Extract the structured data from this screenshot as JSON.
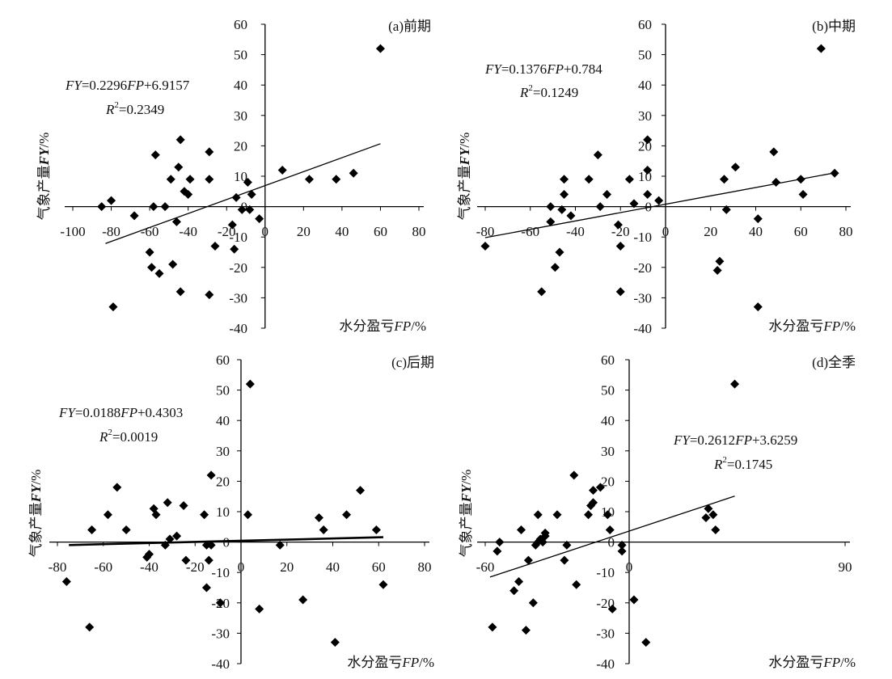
{
  "chart_data": [
    {
      "type": "scatter",
      "title": "(a)前期",
      "xlabel": "水分盈亏FP/%",
      "ylabel": "气象产量FY/%",
      "xlim": [
        -100,
        80
      ],
      "ylim": [
        -40,
        60
      ],
      "xticks": [
        "-100",
        "-80",
        "-60",
        "-40",
        "-20",
        "0",
        "20",
        "40",
        "60",
        "80"
      ],
      "yticks": [
        "-40",
        "-30",
        "-20",
        "-10",
        "0",
        "10",
        "20",
        "30",
        "40",
        "50",
        "60"
      ],
      "equation": {
        "lhs": "FY",
        "mid": "=0.2296",
        "var": "FP",
        "rhs": "+6.9157"
      },
      "r2": {
        "base": "R",
        "exp": "2",
        "value": "=0.2349"
      },
      "trendline": {
        "slope": 0.2296,
        "intercept": 6.9157,
        "x_range": [
          -83,
          60
        ]
      },
      "points": [
        [
          -85,
          0
        ],
        [
          -80,
          2
        ],
        [
          -79,
          -33
        ],
        [
          -68,
          -3
        ],
        [
          -60,
          -15
        ],
        [
          -59,
          -20
        ],
        [
          -58,
          0
        ],
        [
          -57,
          17
        ],
        [
          -55,
          -22
        ],
        [
          -52,
          0
        ],
        [
          -49,
          9
        ],
        [
          -48,
          -19
        ],
        [
          -46,
          -5
        ],
        [
          -45,
          13
        ],
        [
          -44,
          22
        ],
        [
          -44,
          -28
        ],
        [
          -42,
          5
        ],
        [
          -40,
          4
        ],
        [
          -39,
          9
        ],
        [
          -29,
          18
        ],
        [
          -29,
          9
        ],
        [
          -29,
          -29
        ],
        [
          -26,
          -13
        ],
        [
          -17,
          -6
        ],
        [
          -16,
          -14
        ],
        [
          -15,
          3
        ],
        [
          -12,
          -1
        ],
        [
          -9,
          8
        ],
        [
          -8,
          -1
        ],
        [
          -7,
          4
        ],
        [
          -3,
          -4
        ],
        [
          9,
          12
        ],
        [
          23,
          9
        ],
        [
          37,
          9
        ],
        [
          46,
          11
        ],
        [
          60,
          52
        ]
      ]
    },
    {
      "type": "scatter",
      "title": "(b)中期",
      "xlabel": "水分盈亏FP/%",
      "ylabel": "气象产量FY/%",
      "xlim": [
        -80,
        80
      ],
      "ylim": [
        -40,
        60
      ],
      "xticks": [
        "-80",
        "-60",
        "-40",
        "-20",
        "0",
        "20",
        "40",
        "60",
        "80"
      ],
      "yticks": [
        "-40",
        "-30",
        "-20",
        "-10",
        "0",
        "10",
        "20",
        "30",
        "40",
        "50",
        "60"
      ],
      "equation": {
        "lhs": "FY",
        "mid": "=0.1376",
        "var": "FP",
        "rhs": "+0.784"
      },
      "r2": {
        "base": "R",
        "exp": "2",
        "value": "=0.1249"
      },
      "trendline": {
        "slope": 0.1376,
        "intercept": 0.784,
        "x_range": [
          -80,
          75
        ]
      },
      "points": [
        [
          -80,
          -13
        ],
        [
          -55,
          -28
        ],
        [
          -51,
          0
        ],
        [
          -51,
          -5
        ],
        [
          -49,
          -20
        ],
        [
          -47,
          -15
        ],
        [
          -46,
          -1
        ],
        [
          -45,
          4
        ],
        [
          -45,
          9
        ],
        [
          -42,
          -3
        ],
        [
          -34,
          9
        ],
        [
          -30,
          17
        ],
        [
          -29,
          0
        ],
        [
          -26,
          4
        ],
        [
          -21,
          -6
        ],
        [
          -20,
          -13
        ],
        [
          -20,
          -28
        ],
        [
          -16,
          9
        ],
        [
          -14,
          1
        ],
        [
          -8,
          4
        ],
        [
          -8,
          12
        ],
        [
          -8,
          22
        ],
        [
          -3,
          2
        ],
        [
          23,
          -21
        ],
        [
          24,
          -18
        ],
        [
          26,
          9
        ],
        [
          27,
          -1
        ],
        [
          31,
          13
        ],
        [
          41,
          -4
        ],
        [
          41,
          -33
        ],
        [
          48,
          18
        ],
        [
          49,
          8
        ],
        [
          60,
          9
        ],
        [
          61,
          4
        ],
        [
          69,
          52
        ],
        [
          75,
          11
        ]
      ]
    },
    {
      "type": "scatter",
      "title": "(c)后期",
      "xlabel": "水分盈亏FP/%",
      "ylabel": "气象产量FY/%",
      "xlim": [
        -80,
        80
      ],
      "ylim": [
        -40,
        60
      ],
      "xticks": [
        "-80",
        "-60",
        "-40",
        "-20",
        "0",
        "20",
        "40",
        "60",
        "80"
      ],
      "yticks": [
        "-40",
        "-30",
        "-20",
        "-10",
        "0",
        "10",
        "20",
        "30",
        "40",
        "50",
        "60"
      ],
      "equation": {
        "lhs": "FY",
        "mid": "=0.0188",
        "var": "FP",
        "rhs": "+0.4303"
      },
      "r2": {
        "base": "R",
        "exp": "2",
        "value": "=0.0019"
      },
      "trendline": {
        "slope": 0.0188,
        "intercept": 0.4303,
        "x_range": [
          -75,
          62
        ]
      },
      "points": [
        [
          -76,
          -13
        ],
        [
          -66,
          -28
        ],
        [
          -65,
          4
        ],
        [
          -58,
          9
        ],
        [
          -54,
          18
        ],
        [
          -50,
          4
        ],
        [
          -41,
          -5
        ],
        [
          -40,
          -4
        ],
        [
          -38,
          11
        ],
        [
          -37,
          9
        ],
        [
          -33,
          -1
        ],
        [
          -32,
          13
        ],
        [
          -31,
          1
        ],
        [
          -28,
          2
        ],
        [
          -25,
          12
        ],
        [
          -24,
          -6
        ],
        [
          -16,
          9
        ],
        [
          -15,
          -15
        ],
        [
          -15,
          -1
        ],
        [
          -14,
          -6
        ],
        [
          -13,
          -1
        ],
        [
          -13,
          22
        ],
        [
          -9,
          -20
        ],
        [
          3,
          9
        ],
        [
          4,
          52
        ],
        [
          8,
          -22
        ],
        [
          17,
          -1
        ],
        [
          27,
          -19
        ],
        [
          34,
          8
        ],
        [
          36,
          4
        ],
        [
          41,
          -33
        ],
        [
          46,
          9
        ],
        [
          52,
          17
        ],
        [
          59,
          4
        ],
        [
          62,
          -14
        ]
      ]
    },
    {
      "type": "scatter",
      "title": "(d)全季",
      "xlabel": "水分盈亏FP/%",
      "ylabel": "气象产量FY/%",
      "xlim": [
        -60,
        90
      ],
      "ylim": [
        -40,
        60
      ],
      "xticks": [
        "-60",
        "0",
        "90"
      ],
      "yticks": [
        "-40",
        "-30",
        "-20",
        "-10",
        "0",
        "10",
        "20",
        "30",
        "40",
        "50",
        "60"
      ],
      "equation": {
        "lhs": "FY",
        "mid": "=0.2612",
        "var": "FP",
        "rhs": "+3.6259"
      },
      "r2": {
        "base": "R",
        "exp": "2",
        "value": "=0.1745"
      },
      "trendline": {
        "slope": 0.2612,
        "intercept": 3.6259,
        "x_range": [
          -58,
          44
        ]
      },
      "points": [
        [
          -57,
          -28
        ],
        [
          -55,
          -3
        ],
        [
          -54,
          0
        ],
        [
          -48,
          -16
        ],
        [
          -46,
          -13
        ],
        [
          -45,
          4
        ],
        [
          -43,
          -29
        ],
        [
          -42,
          -6
        ],
        [
          -40,
          -20
        ],
        [
          -39,
          -1
        ],
        [
          -38,
          9
        ],
        [
          -38,
          0
        ],
        [
          -37,
          1
        ],
        [
          -36,
          0
        ],
        [
          -35,
          3
        ],
        [
          -35,
          2
        ],
        [
          -30,
          9
        ],
        [
          -27,
          -6
        ],
        [
          -26,
          -1
        ],
        [
          -23,
          22
        ],
        [
          -22,
          -14
        ],
        [
          -17,
          9
        ],
        [
          -16,
          12
        ],
        [
          -15,
          17
        ],
        [
          -15,
          13
        ],
        [
          -12,
          18
        ],
        [
          -9,
          9
        ],
        [
          -8,
          4
        ],
        [
          -7,
          -22
        ],
        [
          -3,
          -3
        ],
        [
          -3,
          -1
        ],
        [
          2,
          -19
        ],
        [
          7,
          -33
        ],
        [
          32,
          8
        ],
        [
          33,
          11
        ],
        [
          35,
          9
        ],
        [
          36,
          4
        ],
        [
          44,
          52
        ]
      ]
    }
  ]
}
